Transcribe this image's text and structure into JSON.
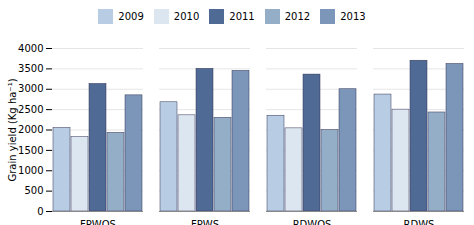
{
  "chart_data": {
    "type": "bar",
    "categories": [
      "FPWOS",
      "FPWS",
      "RDWOS",
      "RDWS"
    ],
    "series": [
      {
        "name": "2009",
        "color": "#b8cce4",
        "values": [
          2050,
          2680,
          2350,
          2870
        ]
      },
      {
        "name": "2010",
        "color": "#dce6f0",
        "values": [
          1830,
          2360,
          2040,
          2500
        ]
      },
      {
        "name": "2011",
        "color": "#4f6a94",
        "values": [
          3130,
          3500,
          3360,
          3700
        ]
      },
      {
        "name": "2012",
        "color": "#95aec8",
        "values": [
          1930,
          2300,
          2000,
          2430
        ]
      },
      {
        "name": "2013",
        "color": "#7b96b8",
        "values": [
          2850,
          3450,
          3000,
          3620
        ]
      }
    ],
    "ylabel": "Grain yield (Kg ha⁻¹)",
    "ylim": [
      0,
      4000
    ],
    "yticks": [
      0,
      500,
      1000,
      1500,
      2000,
      2500,
      3000,
      3500,
      4000
    ],
    "grid": true,
    "legend": "top"
  }
}
